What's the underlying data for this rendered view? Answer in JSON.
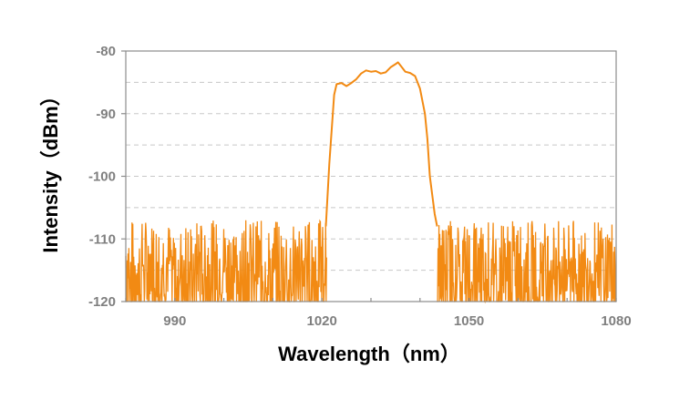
{
  "chart_data": {
    "type": "line",
    "title": "",
    "xlabel": "Wavelength（nm）",
    "ylabel": "Intensity（dBm）",
    "xlim": [
      980,
      1080
    ],
    "ylim": [
      -120,
      -80
    ],
    "xticks": [
      990,
      1020,
      1050,
      1080
    ],
    "yticks": [
      -80,
      -90,
      -100,
      -110,
      -120
    ],
    "grid": "horizontal dashed",
    "legend": "none",
    "series": [
      {
        "color": "#f28a13",
        "x": [
          1020.8,
          1021.5,
          1022.5,
          1023,
          1024,
          1025,
          1026,
          1027,
          1028,
          1029,
          1030,
          1031,
          1032,
          1033,
          1034,
          1035,
          1035.5,
          1036,
          1037,
          1038,
          1039,
          1040,
          1041,
          1041.5,
          1042,
          1043,
          1043.5
        ],
        "values": [
          -108,
          -98,
          -87,
          -85.3,
          -85.1,
          -85.6,
          -85.1,
          -84.5,
          -83.6,
          -83.1,
          -83.3,
          -83.2,
          -83.6,
          -83.4,
          -82.6,
          -82.1,
          -81.8,
          -82.3,
          -83.3,
          -83.5,
          -84.0,
          -86.0,
          -90,
          -94,
          -100,
          -106,
          -108
        ]
      }
    ],
    "noise": {
      "x_ranges": [
        [
          980,
          1021
        ],
        [
          1043.5,
          1080
        ]
      ],
      "y_min": -120,
      "y_max": -107
    }
  }
}
